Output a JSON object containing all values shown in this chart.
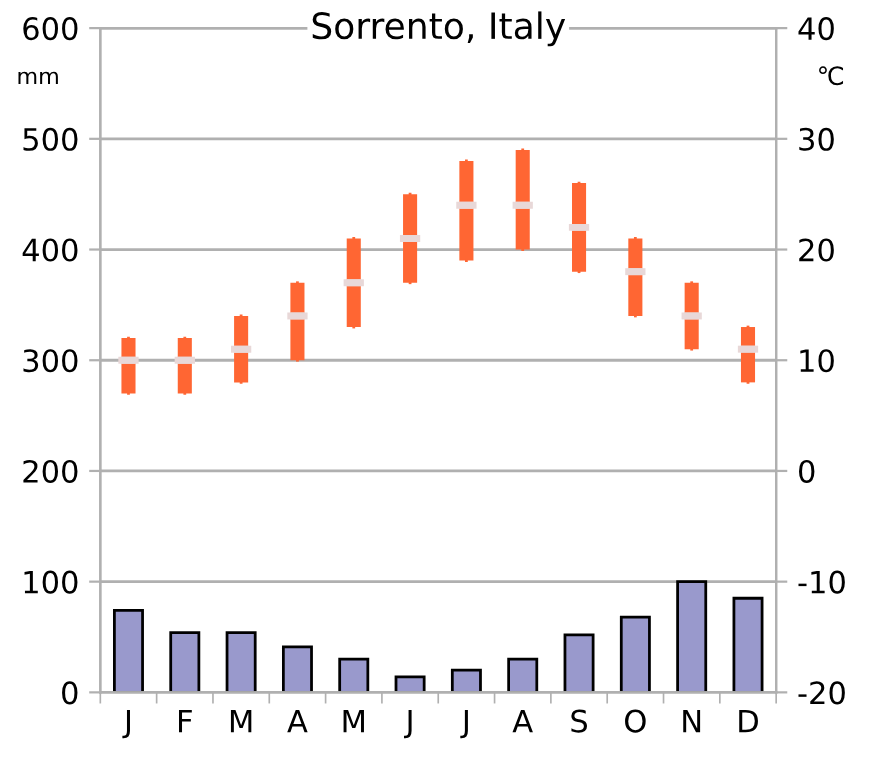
{
  "chart_data": {
    "type": "bar",
    "title": "Sorrento, Italy",
    "ylabel": "mm",
    "y2label": "℃",
    "categories": [
      "J",
      "F",
      "M",
      "A",
      "M",
      "J",
      "J",
      "A",
      "S",
      "O",
      "N",
      "D"
    ],
    "series": [
      {
        "color": "#9999cc",
        "values": [
          74,
          54,
          54,
          41,
          30,
          14,
          20,
          30,
          52,
          68,
          100,
          85
        ]
      },
      {
        "type": "box",
        "axis": "y2",
        "color": "#ff6633",
        "boxes": [
          {
            "low": 7,
            "q1": 7,
            "median": 10,
            "q3": 12,
            "high": 12
          },
          {
            "low": 7,
            "q1": 7,
            "median": 10,
            "q3": 12,
            "high": 12
          },
          {
            "low": 8,
            "q1": 8,
            "median": 11,
            "q3": 14,
            "high": 14
          },
          {
            "low": 10,
            "q1": 10,
            "median": 14,
            "q3": 17,
            "high": 17
          },
          {
            "low": 13,
            "q1": 13,
            "median": 17,
            "q3": 21,
            "high": 21
          },
          {
            "low": 17,
            "q1": 17,
            "median": 21,
            "q3": 25,
            "high": 25
          },
          {
            "low": 19,
            "q1": 19,
            "median": 24,
            "q3": 28,
            "high": 28
          },
          {
            "low": 20,
            "q1": 20,
            "median": 24,
            "q3": 29,
            "high": 29
          },
          {
            "low": 18,
            "q1": 18,
            "median": 22,
            "q3": 26,
            "high": 26
          },
          {
            "low": 14,
            "q1": 14,
            "median": 18,
            "q3": 21,
            "high": 21
          },
          {
            "low": 11,
            "q1": 11,
            "median": 14,
            "q3": 17,
            "high": 17
          },
          {
            "low": 8,
            "q1": 8,
            "median": 11,
            "q3": 13,
            "high": 13
          }
        ]
      }
    ],
    "ylim": [
      0,
      600
    ],
    "yticks": [
      0,
      100,
      200,
      300,
      400,
      500,
      600
    ],
    "y2lim": [
      -20,
      40
    ],
    "y2ticks": [
      -20,
      -10,
      0,
      10,
      20,
      30,
      40
    ],
    "grid": "y"
  }
}
